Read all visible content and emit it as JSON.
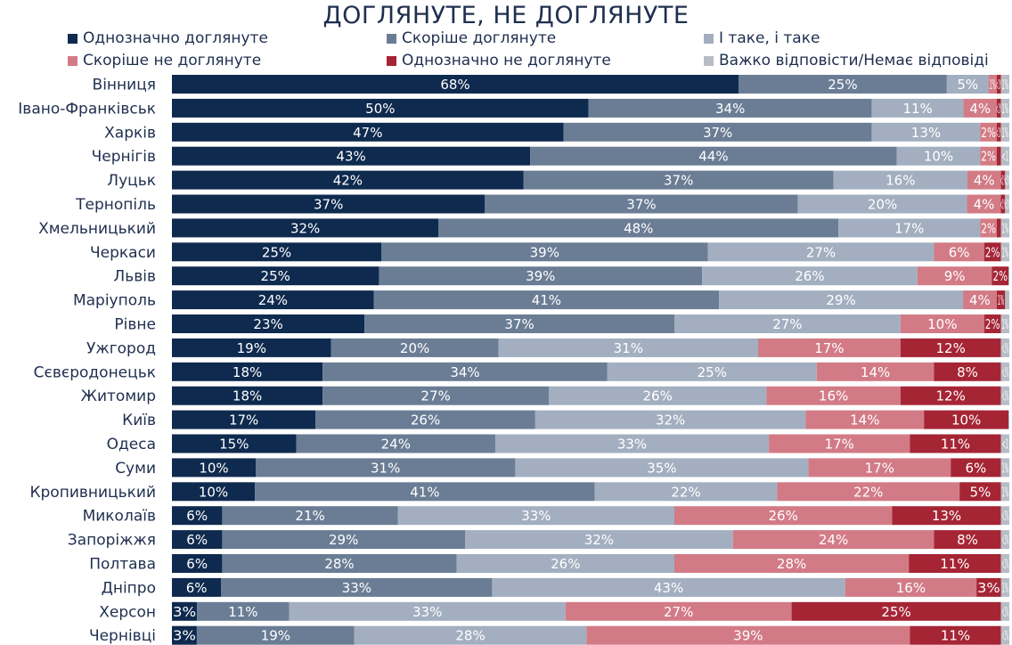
{
  "chart_data": {
    "type": "bar",
    "orientation": "horizontal",
    "stacked": true,
    "title": "ДОГЛЯНУТЕ, НЕ ДОГЛЯНУТЕ",
    "legend_position": "top",
    "categories": [
      "Вінниця",
      "Івано-Франківськ",
      "Харків",
      "Чернігів",
      "Луцьк",
      "Тернопіль",
      "Хмельницький",
      "Черкаси",
      "Львів",
      "Маріуполь",
      "Рівне",
      "Ужгород",
      "Сєвєродонецьк",
      "Житомир",
      "Київ",
      "Одеса",
      "Суми",
      "Кропивницький",
      "Миколаїв",
      "Запоріжжя",
      "Полтава",
      "Дніпро",
      "Херсон",
      "Чернівці"
    ],
    "series": [
      {
        "name": "Однозначно доглянуте",
        "color": "#0e2a4e",
        "text_color": "#ffffff",
        "values": [
          68,
          50,
          47,
          43,
          42,
          37,
          32,
          25,
          25,
          24,
          23,
          19,
          18,
          18,
          17,
          15,
          10,
          10,
          6,
          6,
          6,
          6,
          3,
          3
        ],
        "labels": [
          "68%",
          "50%",
          "47%",
          "43%",
          "42%",
          "37%",
          "32%",
          "25%",
          "25%",
          "24%",
          "23%",
          "19%",
          "18%",
          "18%",
          "17%",
          "15%",
          "10%",
          "10%",
          "6%",
          "6%",
          "6%",
          "6%",
          "3%",
          "3%"
        ]
      },
      {
        "name": "Скоріше доглянуте",
        "color": "#6a7d95",
        "text_color": "#ffffff",
        "values": [
          25,
          34,
          37,
          44,
          37,
          37,
          48,
          39,
          39,
          41,
          37,
          20,
          34,
          27,
          26,
          24,
          31,
          41,
          21,
          29,
          28,
          33,
          11,
          19
        ],
        "labels": [
          "25%",
          "34%",
          "37%",
          "44%",
          "37%",
          "37%",
          "48%",
          "39%",
          "39%",
          "41%",
          "37%",
          "20%",
          "34%",
          "27%",
          "26%",
          "24%",
          "31%",
          "41%",
          "21%",
          "29%",
          "28%",
          "33%",
          "11%",
          "19%"
        ]
      },
      {
        "name": "І таке, і таке",
        "color": "#a3afc0",
        "text_color": "#ffffff",
        "values": [
          5,
          11,
          13,
          10,
          16,
          20,
          17,
          27,
          26,
          29,
          27,
          31,
          25,
          26,
          32,
          33,
          35,
          22,
          33,
          32,
          26,
          43,
          33,
          28
        ],
        "labels": [
          "5%",
          "11%",
          "13%",
          "10%",
          "16%",
          "20%",
          "17%",
          "27%",
          "26%",
          "29%",
          "27%",
          "31%",
          "25%",
          "26%",
          "32%",
          "33%",
          "35%",
          "22%",
          "33%",
          "32%",
          "26%",
          "43%",
          "33%",
          "28%"
        ]
      },
      {
        "name": "Скоріше не доглянуте",
        "color": "#d27b86",
        "text_color": "#ffffff",
        "values": [
          1,
          4,
          2,
          2,
          4,
          4,
          2,
          6,
          9,
          4,
          10,
          17,
          14,
          16,
          14,
          17,
          17,
          22,
          26,
          24,
          28,
          16,
          27,
          39
        ],
        "labels": [
          "1%",
          "4%",
          "2%",
          "2%",
          "4%",
          "4%",
          "2%",
          "6%",
          "9%",
          "4%",
          "10%",
          "17%",
          "14%",
          "16%",
          "14%",
          "17%",
          "17%",
          "22%",
          "26%",
          "24%",
          "28%",
          "16%",
          "27%",
          "39%"
        ]
      },
      {
        "name": "Однозначно не доглянуте",
        "color": "#a52535",
        "text_color": "#ffffff",
        "values": [
          0.5,
          0.5,
          0.5,
          0.5,
          0.5,
          0.5,
          0.5,
          2,
          2,
          1,
          2,
          12,
          8,
          12,
          10,
          11,
          6,
          5,
          13,
          8,
          11,
          3,
          25,
          11
        ],
        "labels": [
          "<1%",
          "<1%",
          "<1%",
          "",
          "<1%",
          "<1%",
          "",
          "2%",
          "2%",
          "1%",
          "2%",
          "12%",
          "8%",
          "12%",
          "10%",
          "11%",
          "6%",
          "5%",
          "13%",
          "8%",
          "11%",
          "3%",
          "25%",
          "11%"
        ]
      },
      {
        "name": "Важко відповісти/Немає відповіді",
        "color": "#b7bcc4",
        "text_color": "#ffffff",
        "values": [
          1,
          1,
          1,
          1,
          0.5,
          0.5,
          1,
          1,
          0.1,
          0.5,
          1,
          1,
          1,
          1,
          0.1,
          1,
          1,
          1,
          1,
          1,
          1,
          1,
          1,
          1
        ],
        "labels": [
          "1%",
          "1%",
          "1%",
          "<1",
          "<1%",
          "<1%",
          "1%",
          "1%",
          "",
          "",
          "1%",
          "<1%",
          "<1%",
          "<1%",
          "",
          "<1",
          "1%",
          "1%",
          "<1%",
          "<1%",
          "<1%",
          "1%",
          "<1%",
          "<1%"
        ]
      }
    ]
  }
}
